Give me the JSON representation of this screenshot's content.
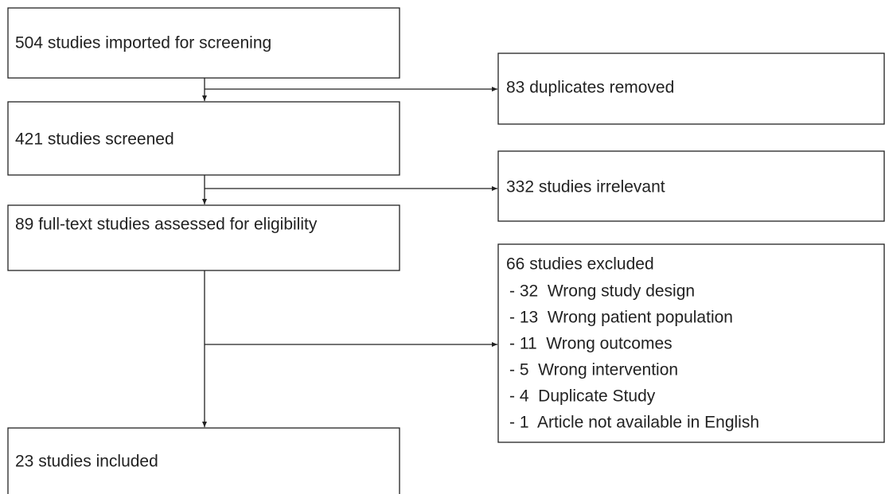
{
  "nodes": [
    {
      "label": "504 studies imported for screening"
    },
    {
      "label": "421 studies screened"
    },
    {
      "label": "89 full-text studies assessed for eligibility"
    },
    {
      "label": "23 studies included"
    }
  ],
  "exclusions": [
    {
      "label": "83 duplicates removed"
    },
    {
      "label": "332 studies irrelevant"
    },
    {
      "label": "66 studies excluded",
      "items": [
        "- 32  Wrong study design",
        "- 13  Wrong patient population",
        "- 11  Wrong outcomes",
        "- 5  Wrong intervention",
        "- 4  Duplicate Study",
        "- 1  Article not available in English"
      ]
    }
  ]
}
